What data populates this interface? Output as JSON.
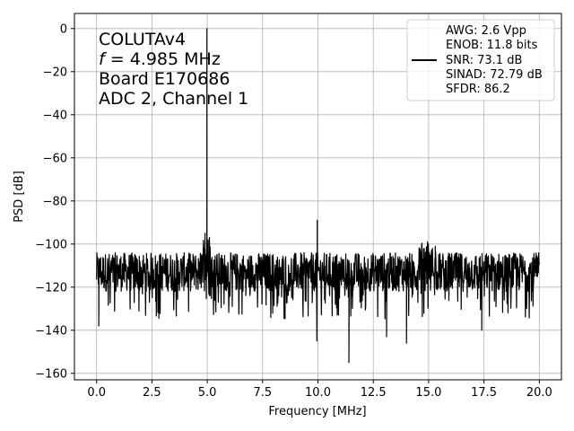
{
  "chart_data": {
    "type": "line",
    "xlabel": "Frequency [MHz]",
    "ylabel": "PSD [dB]",
    "xlim": [
      -1.0,
      21.0
    ],
    "ylim": [
      -163,
      7
    ],
    "xticks": [
      0.0,
      2.5,
      5.0,
      7.5,
      10.0,
      12.5,
      15.0,
      17.5,
      20.0
    ],
    "xtick_labels": [
      "0.0",
      "2.5",
      "5.0",
      "7.5",
      "10.0",
      "12.5",
      "15.0",
      "17.5",
      "20.0"
    ],
    "yticks": [
      0,
      -20,
      -40,
      -60,
      -80,
      -100,
      -120,
      -140,
      -160
    ],
    "ytick_labels": [
      "0",
      "−20",
      "−40",
      "−60",
      "−80",
      "−100",
      "−120",
      "−140",
      "−160"
    ],
    "grid": true,
    "line_color": "#000000",
    "annotation": {
      "line1": "COLUTAv4",
      "line2_var": "f",
      "line2_rest": " = 4.985 MHz",
      "line3": "Board E170686",
      "line4": "ADC 2, Channel 1"
    },
    "legend": {
      "position": "upper right",
      "lines": [
        "AWG: 2.6 Vpp",
        "ENOB: 11.8 bits",
        "SNR: 73.1 dB",
        "SINAD: 72.79 dB",
        "SFDR: 86.2"
      ]
    },
    "noise_floor": {
      "mean": -113,
      "upper": -103,
      "lower": -135,
      "x_start": 0.0,
      "x_end": 20.0
    },
    "peaks": [
      {
        "x": 4.985,
        "y": 0
      },
      {
        "x": 4.9,
        "y": -95
      },
      {
        "x": 5.1,
        "y": -97
      },
      {
        "x": 9.97,
        "y": -89
      },
      {
        "x": 14.95,
        "y": -99
      },
      {
        "x": 15.3,
        "y": -101
      }
    ],
    "dips": [
      {
        "x": 0.1,
        "y": -138
      },
      {
        "x": 9.95,
        "y": -145
      },
      {
        "x": 11.4,
        "y": -155
      },
      {
        "x": 13.1,
        "y": -143
      },
      {
        "x": 14.0,
        "y": -146
      },
      {
        "x": 17.4,
        "y": -140
      }
    ]
  }
}
